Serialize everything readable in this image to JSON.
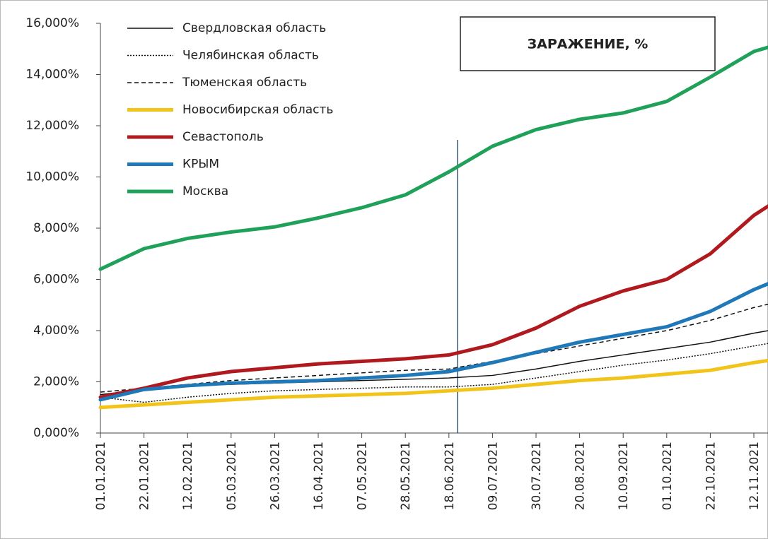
{
  "chart_data": {
    "type": "line",
    "title": "ЗАРАЖЕНИЕ, %",
    "categories": [
      "01.01.2021",
      "22.01.2021",
      "12.02.2021",
      "05.03.2021",
      "26.03.2021",
      "16.04.2021",
      "07.05.2021",
      "28.05.2021",
      "18.06.2021",
      "09.07.2021",
      "30.07.2021",
      "20.08.2021",
      "10.09.2021",
      "01.10.2021",
      "22.10.2021",
      "12.11.2021",
      null
    ],
    "ylim": [
      0,
      16
    ],
    "yticks": [
      {
        "value": 0,
        "label": "0,000%"
      },
      {
        "value": 2,
        "label": "2,000%"
      },
      {
        "value": 4,
        "label": "4,000%"
      },
      {
        "value": 6,
        "label": "6,000%"
      },
      {
        "value": 8,
        "label": "8,000%"
      },
      {
        "value": 10,
        "label": "10,000%"
      },
      {
        "value": 12,
        "label": "12,000%"
      },
      {
        "value": 14,
        "label": "14,000%"
      },
      {
        "value": 16,
        "label": "16,000%"
      }
    ],
    "series": [
      {
        "name": "Свердловская область",
        "color": "#111111",
        "dash": "solid",
        "width": 1.5,
        "values": [
          1.5,
          1.7,
          1.85,
          1.9,
          1.95,
          2.0,
          2.05,
          2.1,
          2.15,
          2.25,
          2.5,
          2.8,
          3.05,
          3.3,
          3.55,
          3.9,
          4.2
        ]
      },
      {
        "name": "Челябинская область",
        "color": "#111111",
        "dash": "dotted",
        "width": 1.5,
        "values": [
          1.4,
          1.2,
          1.4,
          1.55,
          1.65,
          1.7,
          1.75,
          1.8,
          1.8,
          1.9,
          2.15,
          2.4,
          2.65,
          2.85,
          3.1,
          3.4,
          3.7
        ]
      },
      {
        "name": "Тюменская область",
        "color": "#111111",
        "dash": "dashed",
        "width": 1.5,
        "values": [
          1.6,
          1.75,
          1.9,
          2.05,
          2.15,
          2.25,
          2.35,
          2.45,
          2.5,
          2.8,
          3.1,
          3.4,
          3.7,
          4.0,
          4.4,
          4.9,
          5.3
        ]
      },
      {
        "name": "Новосибирская область",
        "color": "#f2c41a",
        "dash": "solid",
        "width": 5,
        "values": [
          1.0,
          1.1,
          1.2,
          1.3,
          1.4,
          1.45,
          1.5,
          1.55,
          1.65,
          1.75,
          1.9,
          2.05,
          2.15,
          2.3,
          2.45,
          2.75,
          3.0
        ]
      },
      {
        "name": "Севастополь",
        "color": "#b0191e",
        "dash": "solid",
        "width": 5,
        "values": [
          1.4,
          1.75,
          2.15,
          2.4,
          2.55,
          2.7,
          2.8,
          2.9,
          3.05,
          3.45,
          4.1,
          4.95,
          5.55,
          6.0,
          7.0,
          8.5,
          9.6
        ]
      },
      {
        "name": "КРЫМ",
        "color": "#1f78b8",
        "dash": "solid",
        "width": 5,
        "values": [
          1.3,
          1.7,
          1.85,
          1.95,
          2.0,
          2.05,
          2.15,
          2.25,
          2.4,
          2.75,
          3.15,
          3.55,
          3.85,
          4.15,
          4.75,
          5.6,
          6.3
        ]
      },
      {
        "name": "Москва",
        "color": "#1fa159",
        "dash": "solid",
        "width": 5,
        "values": [
          6.4,
          7.2,
          7.6,
          7.85,
          8.05,
          8.4,
          8.8,
          9.3,
          10.2,
          11.2,
          11.85,
          12.25,
          12.5,
          12.95,
          13.9,
          14.9,
          15.4
        ]
      }
    ]
  }
}
